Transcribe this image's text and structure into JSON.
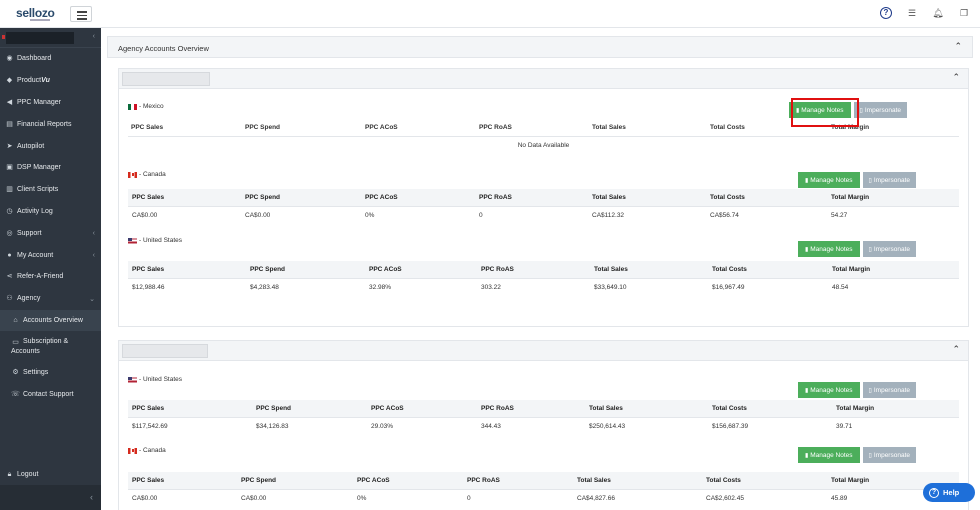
{
  "app": {
    "logo": "sellozo",
    "logo_accent_color": "#3a7cc0",
    "brand_color": "#2a4a6b"
  },
  "topbar": {
    "help_icon": "question-circle-icon",
    "list_icon": "list-icon",
    "bell_icon": "bell-icon",
    "window_icon": "windows-icon"
  },
  "sidebar": {
    "items": [
      {
        "label": "Dashboard",
        "icon": "dashboard-icon"
      },
      {
        "label": "Product",
        "label_em": "Vu",
        "icon": "tag-icon"
      },
      {
        "label": "PPC Manager",
        "icon": "megaphone-icon"
      },
      {
        "label": "Financial Reports",
        "icon": "report-icon"
      },
      {
        "label": "Autopilot",
        "icon": "rocket-icon"
      },
      {
        "label": "DSP Manager",
        "icon": "car-icon"
      },
      {
        "label": "Client Scripts",
        "icon": "server-icon"
      },
      {
        "label": "Activity Log",
        "icon": "clock-icon"
      },
      {
        "label": "Support",
        "icon": "support-icon"
      },
      {
        "label": "My Account",
        "icon": "user-icon"
      },
      {
        "label": "Refer-A-Friend",
        "icon": "share-icon"
      },
      {
        "label": "Agency",
        "icon": "users-icon"
      }
    ],
    "sub_items": [
      {
        "label": "Accounts Overview",
        "icon": "home-icon"
      },
      {
        "label": "Subscription &",
        "label2": "Accounts",
        "icon": "card-icon"
      },
      {
        "label": "Settings",
        "icon": "gear-icon"
      },
      {
        "label": "Contact Support",
        "icon": "phone-icon"
      }
    ],
    "logout": "Logout"
  },
  "main": {
    "title": "Agency Accounts Overview",
    "buttons": {
      "notes": "Manage Notes",
      "impersonate": "Impersonate"
    },
    "columns": [
      "PPC Sales",
      "PPC Spend",
      "PPC ACoS",
      "PPC RoAS",
      "Total Sales",
      "Total Costs",
      "Total Margin"
    ],
    "no_data": "No Data Available",
    "agencies": [
      {
        "countries": [
          {
            "label": "- Mexico",
            "flag": "mx",
            "rows": []
          },
          {
            "label": "- Canada",
            "flag": "ca",
            "rows": [
              [
                "CA$0.00",
                "CA$0.00",
                "0%",
                "0",
                "CA$112.32",
                "CA$56.74",
                "54.27"
              ]
            ]
          },
          {
            "label": "- United States",
            "flag": "us",
            "rows": [
              [
                "$12,988.46",
                "$4,283.48",
                "32.98%",
                "303.22",
                "$33,649.10",
                "$16,967.49",
                "48.54"
              ]
            ]
          }
        ]
      },
      {
        "countries": [
          {
            "label": "- United States",
            "flag": "us",
            "rows": [
              [
                "$117,542.69",
                "$34,126.83",
                "29.03%",
                "344.43",
                "$250,614.43",
                "$156,687.39",
                "39.71"
              ]
            ]
          },
          {
            "label": "- Canada",
            "flag": "ca",
            "rows": [
              [
                "CA$0.00",
                "CA$0.00",
                "0%",
                "0",
                "CA$4,827.66",
                "CA$2,602.45",
                "45.89"
              ]
            ]
          }
        ]
      }
    ]
  },
  "help_button": "Help",
  "colors": {
    "sidebar_bg": "#2e3640",
    "notes_green": "#4cae5b",
    "impersonate_gray": "#a3b1bc",
    "help_blue": "#1e6fd9",
    "highlight_red": "#e01010"
  }
}
